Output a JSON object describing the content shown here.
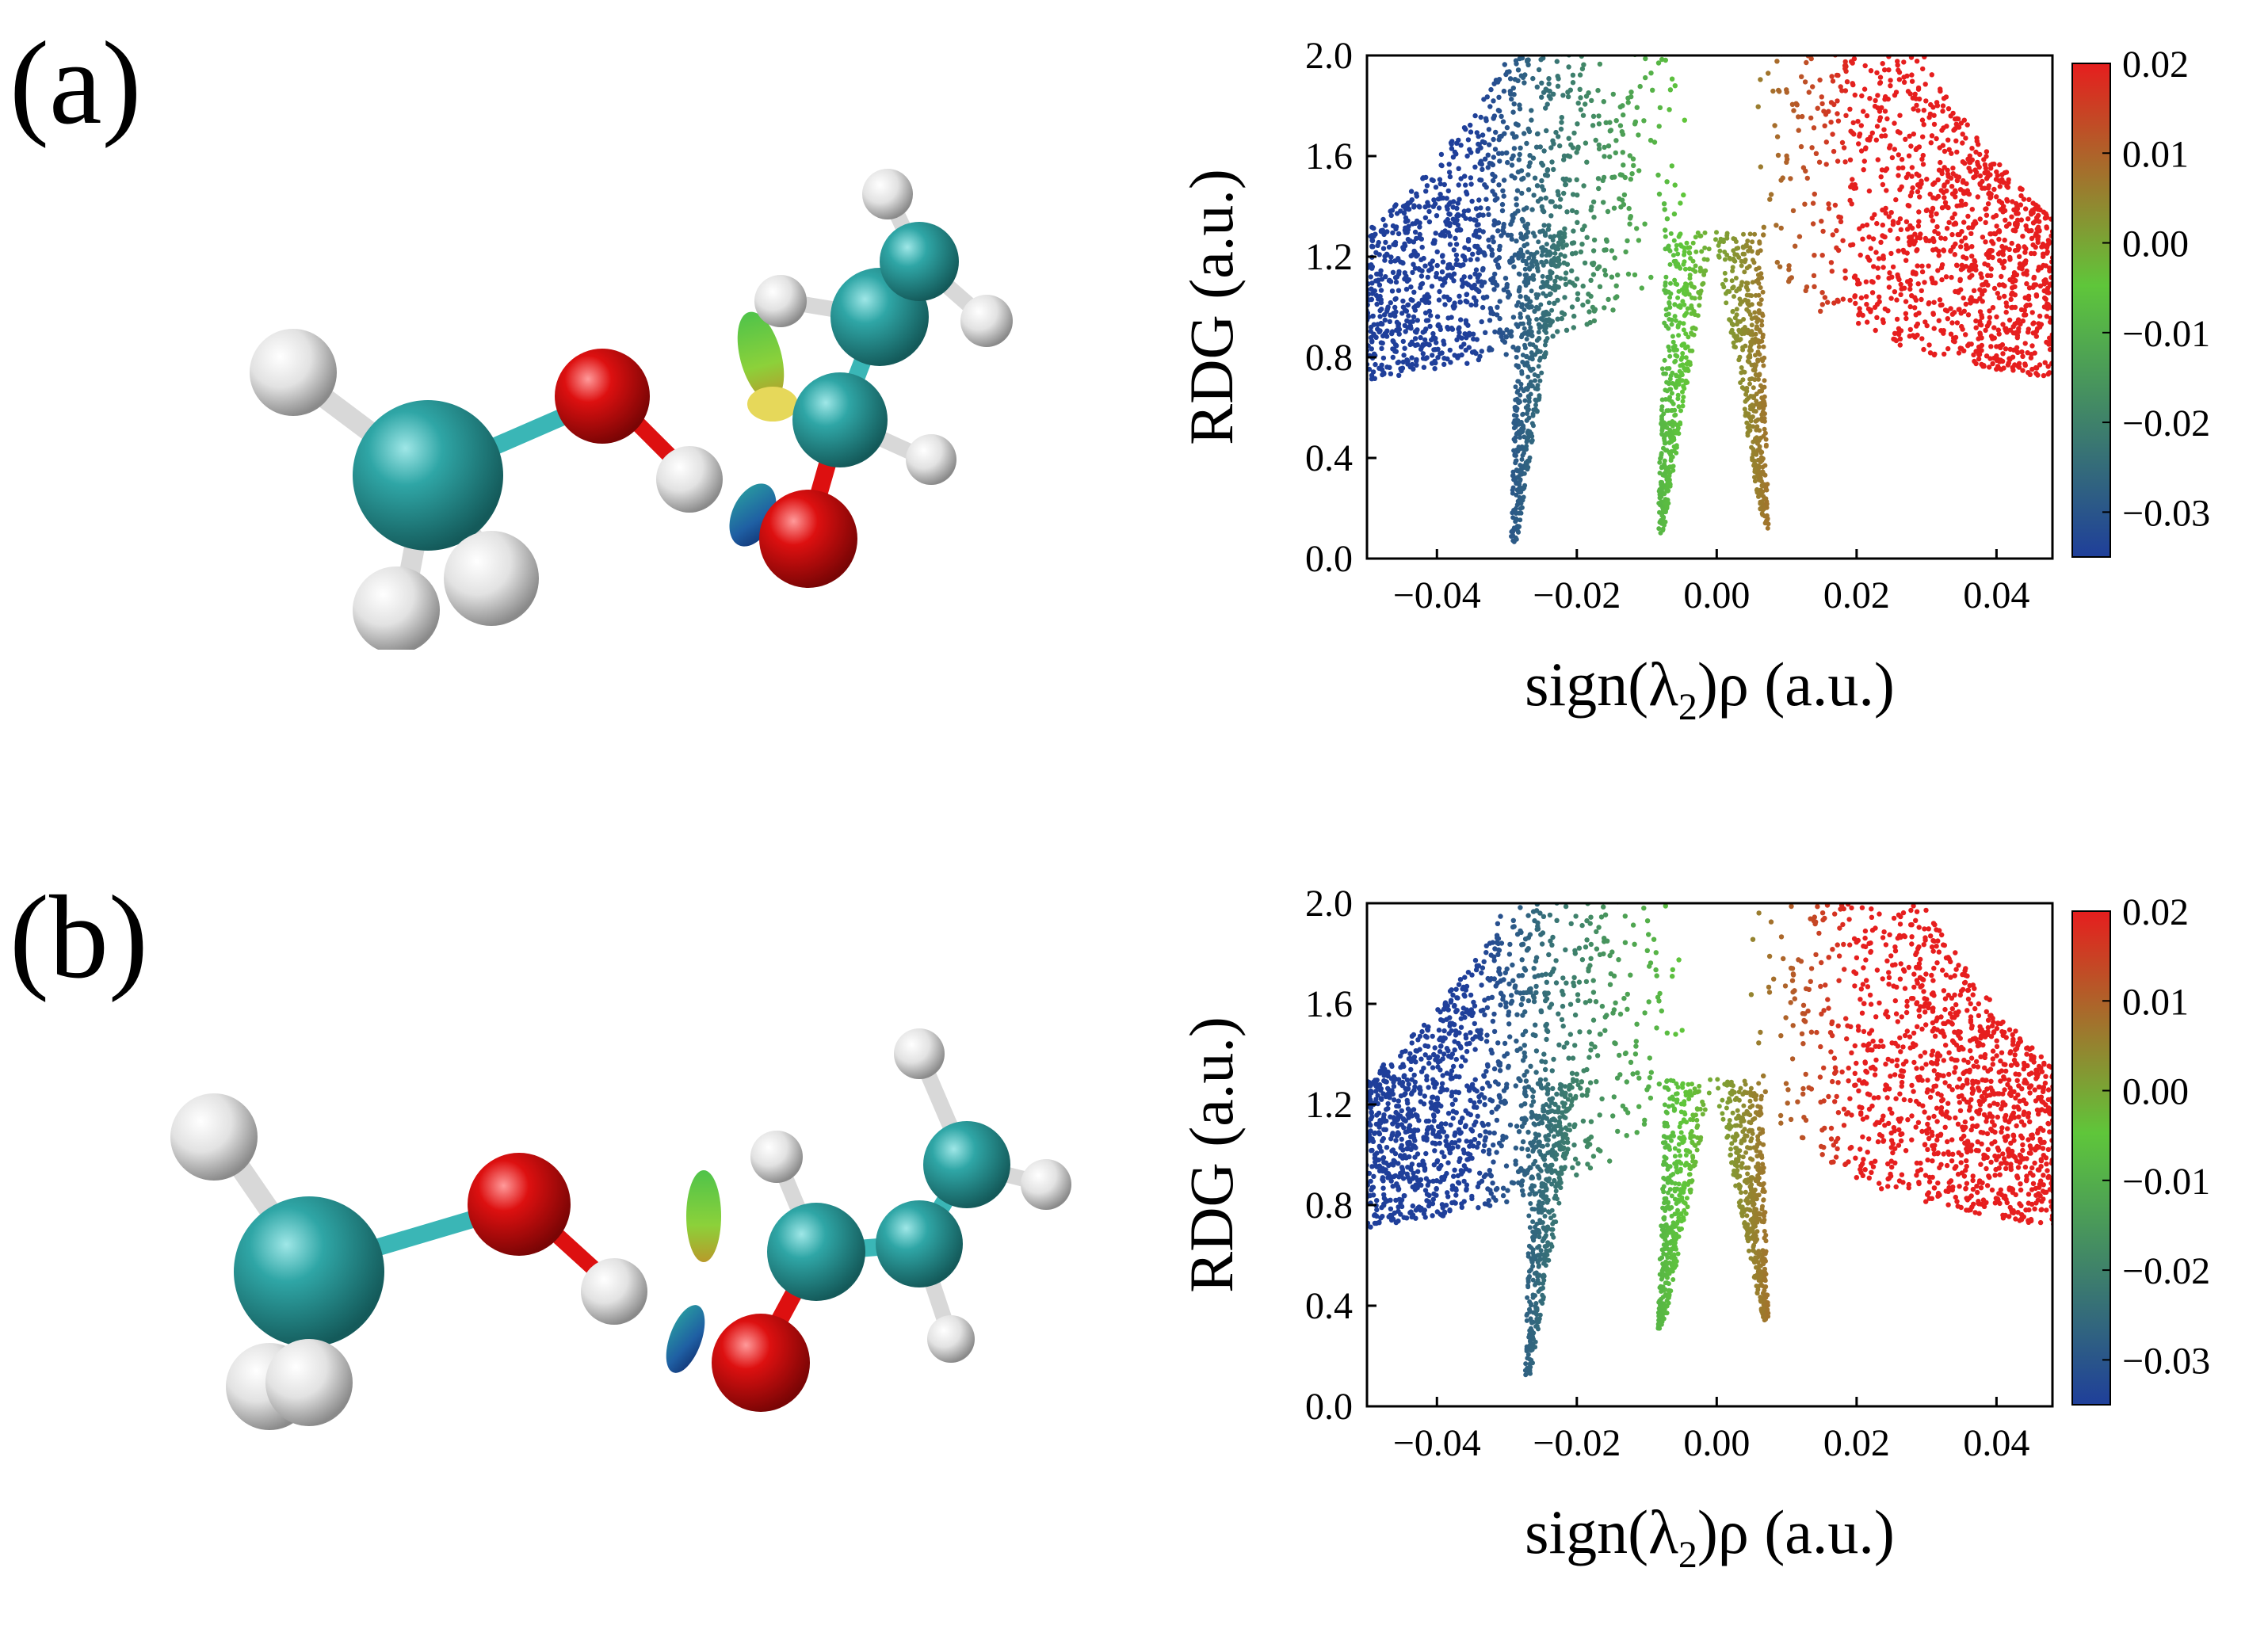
{
  "panels": [
    {
      "label": "(a)",
      "chart_data": {
        "type": "scatter",
        "xlabel": "sign(λ2)ρ (a.u.)",
        "ylabel": "RDG (a.u.)",
        "xlim": [
          -0.05,
          0.048
        ],
        "ylim": [
          0.0,
          2.0
        ],
        "xticks": [
          "−0.04",
          "−0.02",
          "0.00",
          "0.02",
          "0.04"
        ],
        "yticks": [
          "0.0",
          "0.4",
          "0.8",
          "1.2",
          "1.6",
          "2.0"
        ],
        "colorbar": {
          "ticks": [
            "0.02",
            "0.01",
            "0.00",
            "−0.01",
            "−0.02",
            "−0.03"
          ],
          "range": [
            -0.035,
            0.02
          ]
        },
        "spikes": [
          {
            "x_bottom": -0.029,
            "rdg_min": 0.06
          },
          {
            "x_bottom": -0.008,
            "rdg_min": 0.1
          },
          {
            "x_bottom": 0.007,
            "rdg_min": 0.12
          }
        ],
        "grid": false
      }
    },
    {
      "label": "(b)",
      "chart_data": {
        "type": "scatter",
        "xlabel": "sign(λ2)ρ (a.u.)",
        "ylabel": "RDG (a.u.)",
        "xlim": [
          -0.05,
          0.048
        ],
        "ylim": [
          0.0,
          2.0
        ],
        "xticks": [
          "−0.04",
          "−0.02",
          "0.00",
          "0.02",
          "0.04"
        ],
        "yticks": [
          "0.0",
          "0.4",
          "0.8",
          "1.2",
          "1.6",
          "2.0"
        ],
        "colorbar": {
          "ticks": [
            "0.02",
            "0.01",
            "0.00",
            "−0.01",
            "−0.02",
            "−0.03"
          ],
          "range": [
            -0.035,
            0.02
          ]
        },
        "spikes": [
          {
            "x_bottom": -0.027,
            "rdg_min": 0.12
          },
          {
            "x_bottom": -0.008,
            "rdg_min": 0.3
          },
          {
            "x_bottom": 0.007,
            "rdg_min": 0.34
          }
        ],
        "grid": false
      }
    }
  ],
  "colors": {
    "carbon": "#2fa6a6",
    "oxygen": "#dd1010",
    "hydrogen": "#e8e8e8",
    "bond_c": "#3ab6b6",
    "bond_o": "#dd1010",
    "scale_blue": "#1f3f9a",
    "scale_green": "#5fc63a",
    "scale_red": "#e61e1e"
  }
}
